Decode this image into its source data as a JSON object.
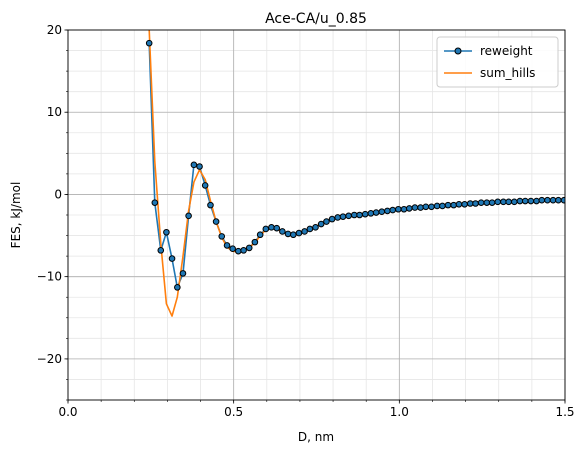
{
  "chart_data": {
    "type": "line",
    "title": "Ace-CA/u_0.85",
    "xlabel": "D, nm",
    "ylabel": "FES, kJ/mol",
    "xlim": [
      0.0,
      1.5
    ],
    "ylim": [
      -25,
      20
    ],
    "x_ticks": [
      0.0,
      0.5,
      1.0,
      1.5
    ],
    "x_tick_labels": [
      "0.0",
      "0.5",
      "1.0",
      "1.5"
    ],
    "y_ticks": [
      -20,
      -10,
      0,
      10,
      20
    ],
    "y_tick_labels": [
      "−20",
      "−10",
      "0",
      "10",
      "20"
    ],
    "x_minor_step": 0.1,
    "y_minor_step": 2.5,
    "grid": "major and minor",
    "legend_position": "upper right",
    "series": [
      {
        "name": "reweight",
        "color": "#1f77b4",
        "marker": "circle",
        "marker_edge": "#000000",
        "x": [
          0.245,
          0.262,
          0.28,
          0.297,
          0.314,
          0.33,
          0.347,
          0.364,
          0.38,
          0.397,
          0.414,
          0.43,
          0.447,
          0.464,
          0.48,
          0.497,
          0.514,
          0.53,
          0.547,
          0.564,
          0.58,
          0.597,
          0.614,
          0.63,
          0.647,
          0.664,
          0.68,
          0.697,
          0.714,
          0.73,
          0.747,
          0.764,
          0.78,
          0.797,
          0.814,
          0.83,
          0.847,
          0.864,
          0.88,
          0.897,
          0.914,
          0.93,
          0.947,
          0.964,
          0.98,
          0.997,
          1.014,
          1.03,
          1.047,
          1.064,
          1.08,
          1.097,
          1.114,
          1.13,
          1.147,
          1.164,
          1.18,
          1.197,
          1.214,
          1.23,
          1.247,
          1.264,
          1.28,
          1.297,
          1.314,
          1.33,
          1.347,
          1.364,
          1.38,
          1.397,
          1.414,
          1.43,
          1.447,
          1.464,
          1.48,
          1.497
        ],
        "y": [
          18.4,
          -1.0,
          -6.8,
          -4.6,
          -7.8,
          -11.3,
          -9.6,
          -2.6,
          3.6,
          3.4,
          1.1,
          -1.3,
          -3.3,
          -5.1,
          -6.2,
          -6.6,
          -6.9,
          -6.8,
          -6.5,
          -5.8,
          -4.9,
          -4.2,
          -4.0,
          -4.1,
          -4.5,
          -4.8,
          -4.9,
          -4.7,
          -4.5,
          -4.2,
          -4.0,
          -3.6,
          -3.3,
          -3.0,
          -2.8,
          -2.7,
          -2.6,
          -2.5,
          -2.5,
          -2.4,
          -2.3,
          -2.2,
          -2.1,
          -2.0,
          -1.9,
          -1.8,
          -1.8,
          -1.7,
          -1.6,
          -1.6,
          -1.5,
          -1.5,
          -1.4,
          -1.4,
          -1.3,
          -1.3,
          -1.2,
          -1.2,
          -1.1,
          -1.1,
          -1.0,
          -1.0,
          -1.0,
          -0.9,
          -0.9,
          -0.9,
          -0.9,
          -0.8,
          -0.8,
          -0.8,
          -0.8,
          -0.7,
          -0.7,
          -0.7,
          -0.7,
          -0.7
        ]
      },
      {
        "name": "sum_hills",
        "color": "#ff7f0e",
        "x": [
          0.245,
          0.262,
          0.28,
          0.297,
          0.314,
          0.33,
          0.347,
          0.364,
          0.38,
          0.397,
          0.414,
          0.43,
          0.447,
          0.464,
          0.48,
          0.497,
          0.514,
          0.53,
          0.547,
          0.564,
          0.58,
          0.597,
          0.614,
          0.63,
          0.647,
          0.664,
          0.68,
          0.697,
          0.714,
          0.73,
          0.747,
          0.764,
          0.78,
          0.797,
          0.814,
          0.83,
          0.847,
          0.864,
          0.88,
          0.897,
          0.914,
          0.93,
          0.947,
          0.964,
          0.98,
          0.997,
          1.014,
          1.03,
          1.047,
          1.064,
          1.08,
          1.097,
          1.114,
          1.13,
          1.147,
          1.164,
          1.18,
          1.197,
          1.214,
          1.23,
          1.247,
          1.264,
          1.28,
          1.297,
          1.314,
          1.33,
          1.347,
          1.364,
          1.38,
          1.397,
          1.414,
          1.43,
          1.447,
          1.464,
          1.48,
          1.497
        ],
        "y": [
          20.0,
          4.0,
          -6.0,
          -13.3,
          -14.8,
          -12.5,
          -7.5,
          -2.0,
          1.5,
          3.0,
          1.8,
          -0.8,
          -3.3,
          -5.2,
          -6.4,
          -6.9,
          -7.0,
          -6.7,
          -6.4,
          -5.9,
          -5.0,
          -4.3,
          -4.1,
          -4.2,
          -4.5,
          -4.8,
          -4.9,
          -4.7,
          -4.5,
          -4.2,
          -3.9,
          -3.6,
          -3.3,
          -3.0,
          -2.8,
          -2.7,
          -2.6,
          -2.5,
          -2.5,
          -2.4,
          -2.3,
          -2.2,
          -2.1,
          -2.0,
          -1.9,
          -1.8,
          -1.8,
          -1.7,
          -1.6,
          -1.6,
          -1.5,
          -1.5,
          -1.4,
          -1.4,
          -1.3,
          -1.3,
          -1.2,
          -1.2,
          -1.1,
          -1.1,
          -1.0,
          -1.0,
          -1.0,
          -0.9,
          -0.9,
          -0.9,
          -0.9,
          -0.8,
          -0.8,
          -0.8,
          -0.8,
          -0.7,
          -0.7,
          -0.7,
          -0.7,
          -0.7
        ]
      }
    ]
  }
}
